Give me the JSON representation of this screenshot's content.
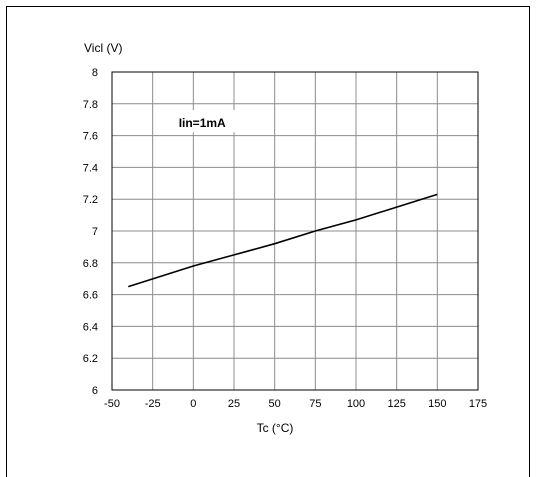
{
  "chart_data": {
    "type": "line",
    "title": "",
    "ylabel": "Vicl (V)",
    "xlabel": "Tc (°C)",
    "annotation": "Iin=1mA",
    "xlim": [
      -50,
      175
    ],
    "ylim": [
      6,
      8
    ],
    "xticks": [
      -50,
      -25,
      0,
      25,
      50,
      75,
      100,
      125,
      150,
      175
    ],
    "yticks": [
      6,
      6.2,
      6.4,
      6.6,
      6.8,
      7,
      7.2,
      7.4,
      7.6,
      7.8,
      8
    ],
    "grid": true,
    "series": [
      {
        "x": [
          -40,
          0,
          25,
          50,
          75,
          100,
          125,
          150
        ],
        "y": [
          6.65,
          6.78,
          6.85,
          6.92,
          7.0,
          7.07,
          7.15,
          7.23
        ],
        "color": "#000000"
      }
    ]
  }
}
